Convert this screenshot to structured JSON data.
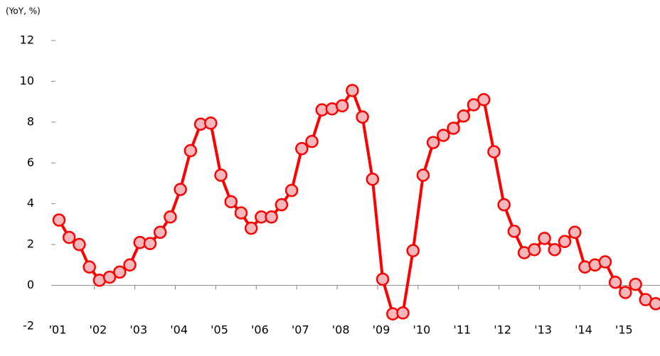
{
  "chart_data": {
    "type": "line",
    "y_axis_label": "(YoY, %)",
    "categories": [
      "'01",
      null,
      null,
      null,
      "'02",
      null,
      null,
      null,
      "'03",
      null,
      null,
      null,
      "'04",
      null,
      null,
      null,
      "'05",
      null,
      null,
      null,
      "'06",
      null,
      null,
      null,
      "'07",
      null,
      null,
      null,
      "'08",
      null,
      null,
      null,
      "'09",
      null,
      null,
      null,
      "'10",
      null,
      null,
      null,
      "'11",
      null,
      null,
      null,
      "'12",
      null,
      null,
      null,
      "'13",
      null,
      null,
      null,
      "'14",
      null,
      null,
      null,
      "'15",
      null,
      null,
      null
    ],
    "series": [
      {
        "color": "#ff0000",
        "marker_fill": "#f4b8bc",
        "values": [
          3.2,
          2.35,
          2.0,
          0.9,
          0.25,
          0.4,
          0.65,
          1.0,
          2.1,
          2.05,
          2.6,
          3.35,
          4.7,
          6.6,
          7.9,
          7.95,
          5.4,
          4.1,
          3.55,
          2.8,
          3.35,
          3.35,
          3.95,
          4.65,
          6.7,
          7.05,
          8.6,
          8.65,
          8.8,
          9.55,
          8.25,
          5.2,
          0.3,
          -1.4,
          -1.35,
          1.7,
          5.4,
          7.0,
          7.35,
          7.7,
          8.3,
          8.85,
          9.1,
          6.55,
          3.95,
          2.65,
          1.6,
          1.75,
          2.3,
          1.75,
          2.15,
          2.6,
          0.9,
          1.0,
          1.15,
          0.15,
          -0.35,
          0.05,
          -0.7,
          -0.9
        ]
      }
    ],
    "ylim": [
      -2,
      12
    ],
    "yticks": [
      -2,
      0,
      2,
      4,
      6,
      8,
      10,
      12
    ],
    "grid": false
  }
}
